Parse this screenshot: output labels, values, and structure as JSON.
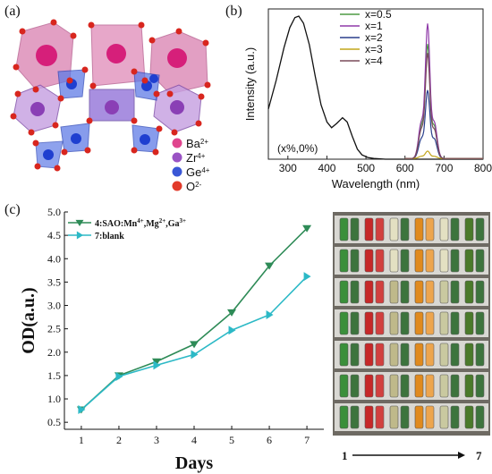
{
  "panel_labels": {
    "a": "(a)",
    "b": "(b)",
    "c": "(c)"
  },
  "structure": {
    "legend": [
      {
        "base": "Ba",
        "sup": "2+",
        "color": "#e0458e"
      },
      {
        "base": "Zr",
        "sup": "4+",
        "color": "#9a53c4"
      },
      {
        "base": "Ge",
        "sup": "4+",
        "color": "#3a57d6"
      },
      {
        "base": "O",
        "sup": "2-",
        "color": "#e23a2a"
      }
    ]
  },
  "photo": {
    "axis_start": "1",
    "axis_end": "7"
  },
  "chart_data": [
    {
      "type": "line",
      "xlabel": "Wavelength (nm)",
      "ylabel": "Intensity (a.u.)",
      "xlim": [
        250,
        800
      ],
      "xticks": [
        300,
        400,
        500,
        600,
        700,
        800
      ],
      "ylim": [
        0,
        1
      ],
      "annotation": "(x%,0%)",
      "excitation": {
        "x": [
          250,
          270,
          290,
          305,
          318,
          328,
          340,
          355,
          370,
          385,
          400,
          412,
          425,
          440,
          452,
          465,
          478,
          490,
          505,
          520,
          550,
          600,
          650,
          700,
          800
        ],
        "y": [
          0.35,
          0.55,
          0.78,
          0.92,
          0.99,
          1.0,
          0.95,
          0.8,
          0.58,
          0.38,
          0.26,
          0.22,
          0.25,
          0.29,
          0.26,
          0.16,
          0.07,
          0.03,
          0.012,
          0.005,
          0.0,
          0.0,
          0.0,
          0.0,
          0.0
        ]
      },
      "legend": [
        "x=0.5",
        "x=1",
        "x=2",
        "x=3",
        "x=4"
      ],
      "series": [
        {
          "name": "x=0.5",
          "color": "#4d9c44",
          "peak": 0.77,
          "shoulder": 0.45
        },
        {
          "name": "x=1",
          "color": "#8f3aa8",
          "peak": 0.91,
          "shoulder": 0.5
        },
        {
          "name": "x=2",
          "color": "#2a3f8c",
          "peak": 0.46,
          "shoulder": 0.27
        },
        {
          "name": "x=3",
          "color": "#c2a61a",
          "peak": 0.05,
          "shoulder": 0.03
        },
        {
          "name": "x=4",
          "color": "#7a4b5a",
          "peak": 0.71,
          "shoulder": 0.4
        }
      ]
    },
    {
      "type": "line",
      "xlabel": "Days",
      "ylabel": "OD(a.u.)",
      "x": [
        1,
        2,
        3,
        4,
        5,
        6,
        7
      ],
      "ylim": [
        0.5,
        5.0
      ],
      "yticks": [
        0.5,
        1.0,
        1.5,
        2.0,
        2.5,
        3.0,
        3.5,
        4.0,
        4.5,
        5.0
      ],
      "series": [
        {
          "name": "4:SAO:Mn4+,Mg2+,Ga3+",
          "name_parts": [
            [
              "4:SAO:Mn",
              "4+"
            ],
            [
              ",Mg",
              "2+"
            ],
            [
              ",Ga",
              "3+"
            ]
          ],
          "marker": "triangle-down",
          "color": "#2e8b57",
          "values": [
            0.77,
            1.5,
            1.8,
            2.17,
            2.85,
            3.85,
            4.65
          ]
        },
        {
          "name": "7:blank",
          "marker": "triangle-right",
          "color": "#2cb9c6",
          "values": [
            0.77,
            1.48,
            1.72,
            1.95,
            2.47,
            2.8,
            3.62
          ]
        }
      ]
    }
  ]
}
